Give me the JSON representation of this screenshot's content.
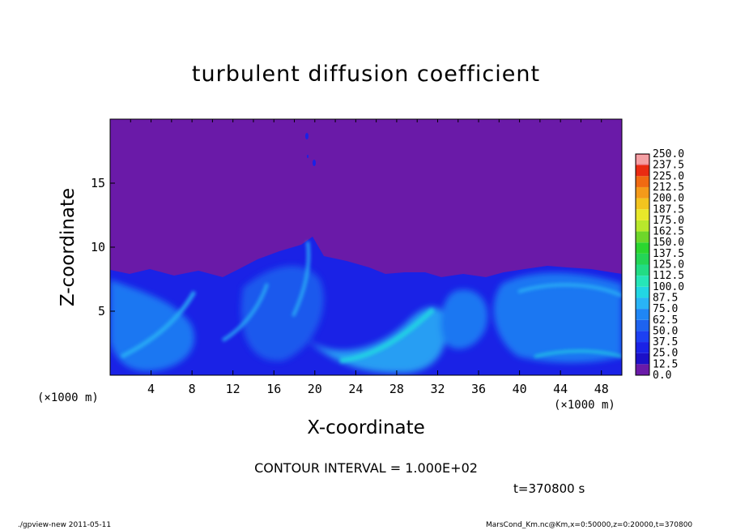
{
  "chart_data": {
    "type": "heatmap",
    "title": "turbulent diffusion coefficient",
    "xlabel": "X-coordinate",
    "ylabel": "Z-coordinate",
    "x_unit_left": "(×1000 m)",
    "x_unit_right": "(×1000 m)",
    "x_ticks": [
      4,
      8,
      12,
      16,
      20,
      24,
      28,
      32,
      36,
      40,
      44,
      48
    ],
    "y_ticks": [
      5,
      10,
      15
    ],
    "xlim": [
      0,
      50
    ],
    "ylim": [
      0,
      20
    ],
    "colorbar": {
      "levels": [
        "0.0",
        "12.5",
        "25.0",
        "37.5",
        "50.0",
        "62.5",
        "75.0",
        "87.5",
        "100.0",
        "112.5",
        "125.0",
        "137.5",
        "150.0",
        "162.5",
        "175.0",
        "187.5",
        "200.0",
        "212.5",
        "225.0",
        "237.5",
        "250.0"
      ],
      "colors": [
        "#6a1aa8",
        "#1c10c8",
        "#1a22e6",
        "#1d40f2",
        "#1e63ef",
        "#1f86f5",
        "#29b4f6",
        "#22d6e3",
        "#26e6b8",
        "#22dc84",
        "#24d556",
        "#2bd62f",
        "#6ed62a",
        "#b8e82c",
        "#e8e82a",
        "#f2c41f",
        "#f49a1a",
        "#f06a12",
        "#ea2b12",
        "#f46070"
      ],
      "top_color": "#f4a0a4"
    },
    "annotation_text": "CONTOUR INTERVAL = 1.000E+02",
    "time_label": "t=370800 s"
  },
  "footer": {
    "left": "./gpview-new  2011-05-11",
    "right": "MarsCond_Km.nc@Km,x=0:50000,z=0:20000,t=370800"
  },
  "colors": {
    "background_purple": "#6a1aa8",
    "deep_blue": "#1a22e6",
    "cyan": "#29b4f6"
  }
}
